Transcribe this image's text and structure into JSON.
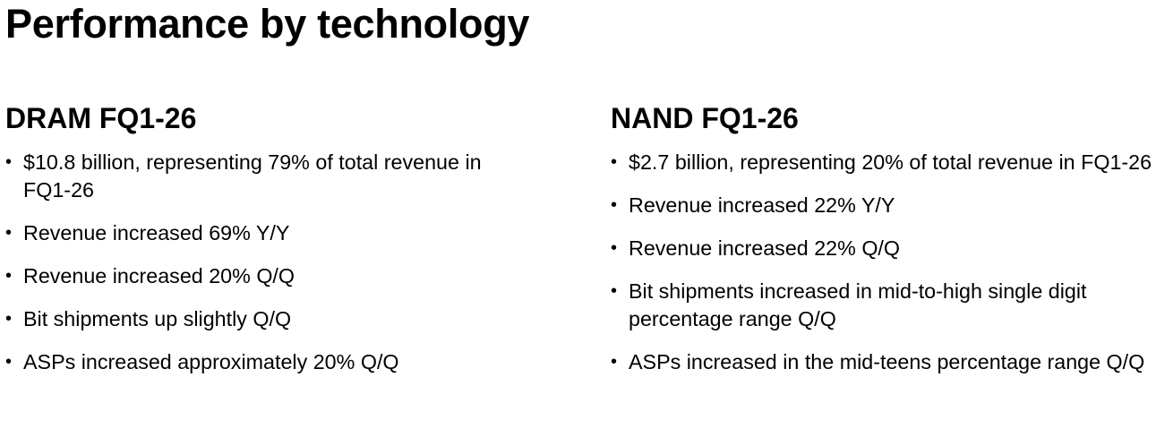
{
  "page": {
    "title": "Performance by technology"
  },
  "dram": {
    "heading": "DRAM FQ1-26",
    "bullet_symbol": "•",
    "items": [
      "$10.8 billion, representing 79% of total revenue in FQ1-26",
      "Revenue increased 69% Y/Y",
      "Revenue increased 20% Q/Q",
      "Bit shipments up slightly Q/Q",
      "ASPs increased approximately 20% Q/Q"
    ]
  },
  "nand": {
    "heading": "NAND FQ1-26",
    "bullet_symbol": "•",
    "items": [
      "$2.7 billion, representing 20% of total revenue in FQ1-26",
      "Revenue increased 22% Y/Y",
      "Revenue increased 22% Q/Q",
      "Bit shipments increased in mid-to-high single digit percentage range Q/Q",
      "ASPs increased in the mid-teens percentage range Q/Q"
    ]
  }
}
